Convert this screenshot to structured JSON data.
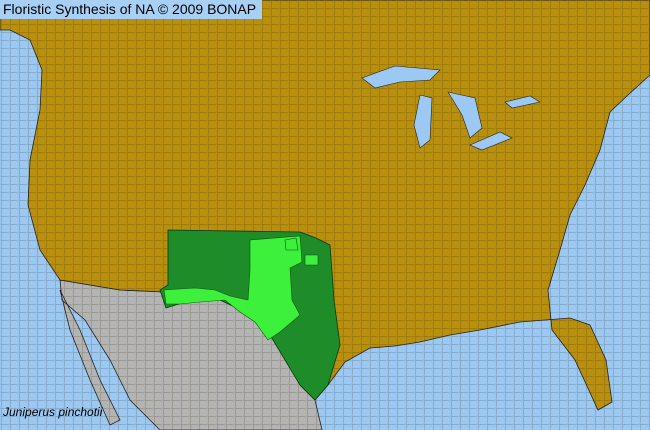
{
  "title": "Floristic Synthesis of NA © 2009 BONAP",
  "species": "Juniperus pinchotii",
  "colors": {
    "water": "#9cc8f4",
    "no_record": "#b8900e",
    "outside_range": "#b4b4b4",
    "present_state": "#1e8c28",
    "present_county": "#3cf03c",
    "boundary": "#3a2c00"
  },
  "range_states": [
    "Texas",
    "Oklahoma",
    "New Mexico"
  ]
}
